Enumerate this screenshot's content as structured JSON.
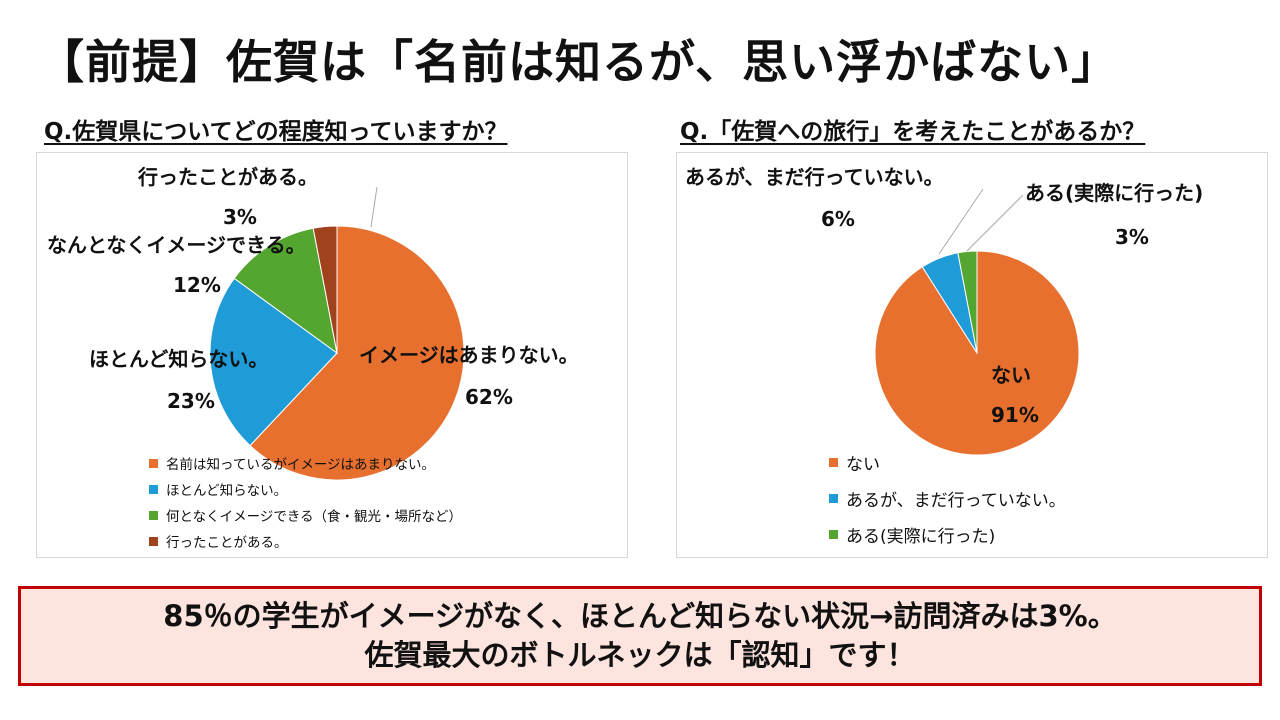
{
  "title": "【前提】佐賀は「名前は知るが、思い浮かばない」",
  "colors": {
    "orange": "#e8702f",
    "blue": "#1f9bd7",
    "green": "#55a630",
    "brown": "#a0431d"
  },
  "chart_data": [
    {
      "type": "pie",
      "title": "Q.佐賀県についてどの程度知っていますか？",
      "start_angle_deg": 0,
      "slices": [
        {
          "legend": "名前は知っているがイメージはあまりない。",
          "label": "イメージはあまりない。",
          "pct_label": "62%",
          "value": 62,
          "color": "#e8702f"
        },
        {
          "legend": "ほとんど知らない。",
          "label": "ほとんど知らない。",
          "pct_label": "23%",
          "value": 23,
          "color": "#1f9bd7"
        },
        {
          "legend": "何となくイメージできる（食・観光・場所など）",
          "label": "なんとなくイメージできる。",
          "pct_label": "12%",
          "value": 12,
          "color": "#55a630"
        },
        {
          "legend": "行ったことがある。",
          "label": "行ったことがある。",
          "pct_label": "3%",
          "value": 3,
          "color": "#a0431d"
        }
      ],
      "legend_position": "bottom-left"
    },
    {
      "type": "pie",
      "title": "Q.「佐賀への旅行」を考えたことがあるか？",
      "start_angle_deg": 0,
      "slices": [
        {
          "legend": "ない",
          "label": "ない",
          "pct_label": "91%",
          "value": 91,
          "color": "#e8702f"
        },
        {
          "legend": "あるが、まだ行っていない。",
          "label": "あるが、まだ行っていない。",
          "pct_label": "6%",
          "value": 6,
          "color": "#1f9bd7"
        },
        {
          "legend": "ある(実際に行った)",
          "label": "ある(実際に行った)",
          "pct_label": "3%",
          "value": 3,
          "color": "#55a630"
        }
      ],
      "legend_position": "bottom-left"
    }
  ],
  "summary": {
    "line1": "85％の学生がイメージがなく、ほとんど知らない状況→訪問済みは3%。",
    "line2": "佐賀最大のボトルネックは「認知」です！"
  }
}
